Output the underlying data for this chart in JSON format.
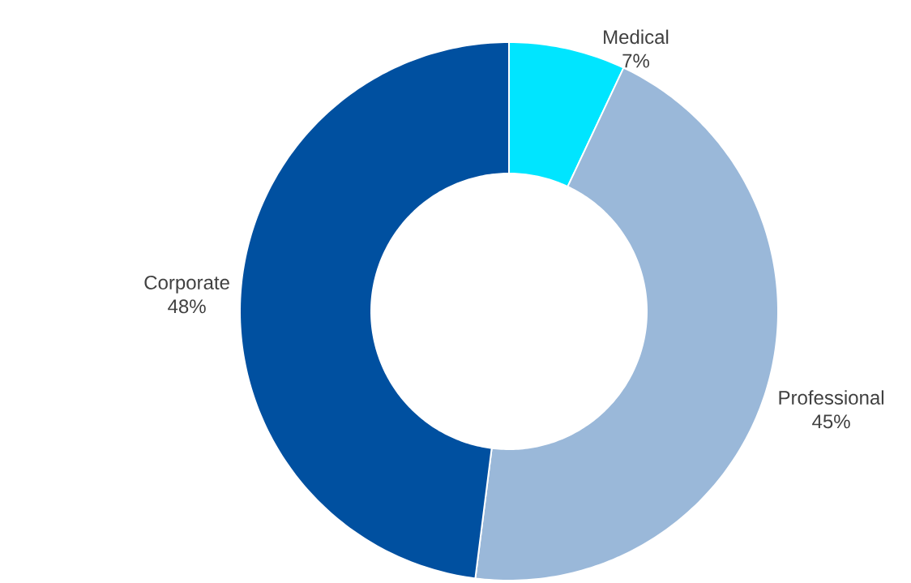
{
  "chart_data": {
    "type": "donut",
    "categories": [
      "Medical",
      "Professional",
      "Corporate"
    ],
    "values": [
      7,
      45,
      48
    ],
    "colors": [
      "#00e5ff",
      "#9ab8d9",
      "#0050a0"
    ],
    "value_labels": [
      "7%",
      "45%",
      "48%"
    ]
  }
}
